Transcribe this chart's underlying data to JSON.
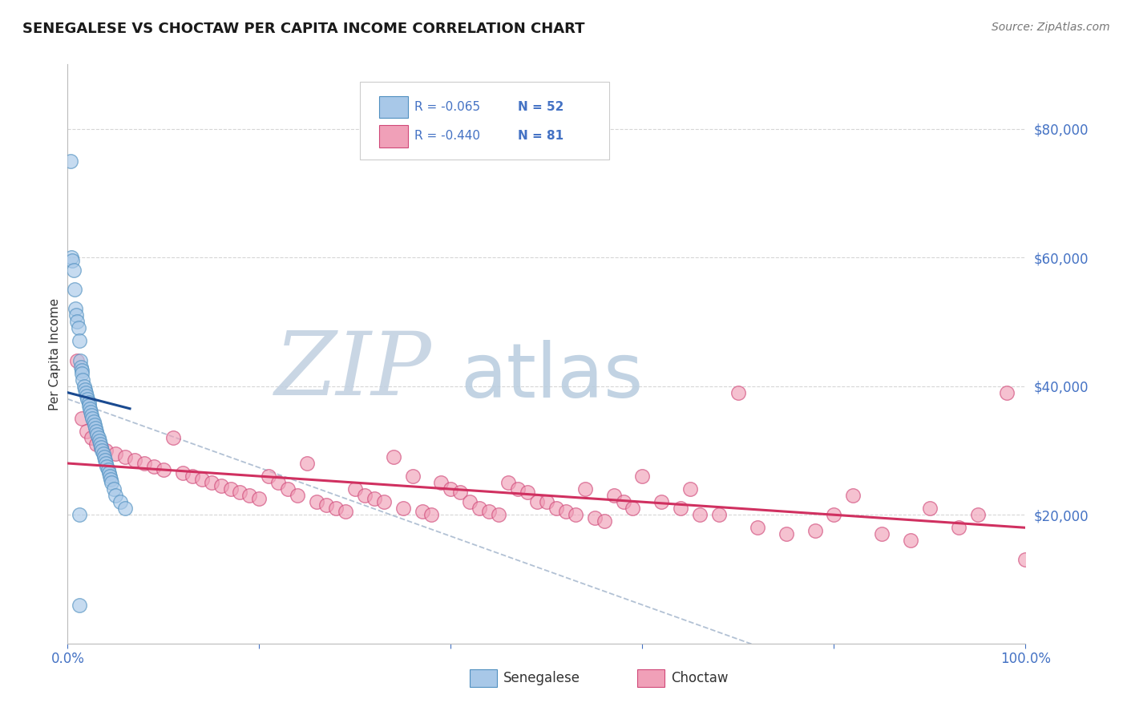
{
  "title": "SENEGALESE VS CHOCTAW PER CAPITA INCOME CORRELATION CHART",
  "source_text": "Source: ZipAtlas.com",
  "ylabel": "Per Capita Income",
  "xlim": [
    0.0,
    1.0
  ],
  "ylim": [
    0,
    90000
  ],
  "yticks": [
    20000,
    40000,
    60000,
    80000
  ],
  "ytick_labels": [
    "$20,000",
    "$40,000",
    "$60,000",
    "$80,000"
  ],
  "blue_color": "#a8c8e8",
  "blue_edge_color": "#5090c0",
  "pink_color": "#f0a0b8",
  "pink_edge_color": "#d04878",
  "trend_blue_color": "#1a4a90",
  "trend_pink_color": "#d03060",
  "dash_color": "#aabbd0",
  "watermark_zip_color": "#c8d4e4",
  "watermark_atlas_color": "#b8cce0",
  "background_color": "#ffffff",
  "legend_r1": "R = -0.065",
  "legend_n1": "N = 52",
  "legend_r2": "R = -0.440",
  "legend_n2": "N = 81",
  "text_color_blue": "#4472c4",
  "text_color_dark": "#333333",
  "senegalese_x": [
    0.003,
    0.004,
    0.005,
    0.006,
    0.007,
    0.008,
    0.009,
    0.01,
    0.011,
    0.012,
    0.013,
    0.014,
    0.015,
    0.015,
    0.016,
    0.017,
    0.018,
    0.019,
    0.02,
    0.021,
    0.022,
    0.022,
    0.023,
    0.024,
    0.025,
    0.026,
    0.027,
    0.028,
    0.029,
    0.03,
    0.031,
    0.032,
    0.033,
    0.034,
    0.035,
    0.036,
    0.037,
    0.038,
    0.039,
    0.04,
    0.041,
    0.042,
    0.043,
    0.044,
    0.045,
    0.046,
    0.048,
    0.05,
    0.055,
    0.06,
    0.012,
    0.012
  ],
  "senegalese_y": [
    75000,
    60000,
    59500,
    58000,
    55000,
    52000,
    51000,
    50000,
    49000,
    47000,
    44000,
    43000,
    42500,
    42000,
    41000,
    40000,
    39500,
    39000,
    38500,
    38000,
    37500,
    37000,
    36500,
    36000,
    35500,
    35000,
    34500,
    34000,
    33500,
    33000,
    32500,
    32000,
    31500,
    31000,
    30500,
    30000,
    29500,
    29000,
    28500,
    28000,
    27500,
    27000,
    26500,
    26000,
    25500,
    25000,
    24000,
    23000,
    22000,
    21000,
    6000,
    20000
  ],
  "choctaw_x": [
    0.01,
    0.015,
    0.02,
    0.025,
    0.03,
    0.035,
    0.04,
    0.05,
    0.06,
    0.07,
    0.08,
    0.09,
    0.1,
    0.11,
    0.12,
    0.13,
    0.14,
    0.15,
    0.16,
    0.17,
    0.18,
    0.19,
    0.2,
    0.21,
    0.22,
    0.23,
    0.24,
    0.25,
    0.26,
    0.27,
    0.28,
    0.29,
    0.3,
    0.31,
    0.32,
    0.33,
    0.34,
    0.35,
    0.36,
    0.37,
    0.38,
    0.39,
    0.4,
    0.41,
    0.42,
    0.43,
    0.44,
    0.45,
    0.46,
    0.47,
    0.48,
    0.49,
    0.5,
    0.51,
    0.52,
    0.53,
    0.54,
    0.55,
    0.56,
    0.57,
    0.58,
    0.59,
    0.6,
    0.62,
    0.64,
    0.65,
    0.66,
    0.68,
    0.7,
    0.72,
    0.75,
    0.78,
    0.8,
    0.82,
    0.85,
    0.88,
    0.9,
    0.93,
    0.95,
    0.98,
    1.0
  ],
  "choctaw_y": [
    44000,
    35000,
    33000,
    32000,
    31000,
    30500,
    30000,
    29500,
    29000,
    28500,
    28000,
    27500,
    27000,
    32000,
    26500,
    26000,
    25500,
    25000,
    24500,
    24000,
    23500,
    23000,
    22500,
    26000,
    25000,
    24000,
    23000,
    28000,
    22000,
    21500,
    21000,
    20500,
    24000,
    23000,
    22500,
    22000,
    29000,
    21000,
    26000,
    20500,
    20000,
    25000,
    24000,
    23500,
    22000,
    21000,
    20500,
    20000,
    25000,
    24000,
    23500,
    22000,
    22000,
    21000,
    20500,
    20000,
    24000,
    19500,
    19000,
    23000,
    22000,
    21000,
    26000,
    22000,
    21000,
    24000,
    20000,
    20000,
    39000,
    18000,
    17000,
    17500,
    20000,
    23000,
    17000,
    16000,
    21000,
    18000,
    20000,
    39000,
    13000
  ]
}
